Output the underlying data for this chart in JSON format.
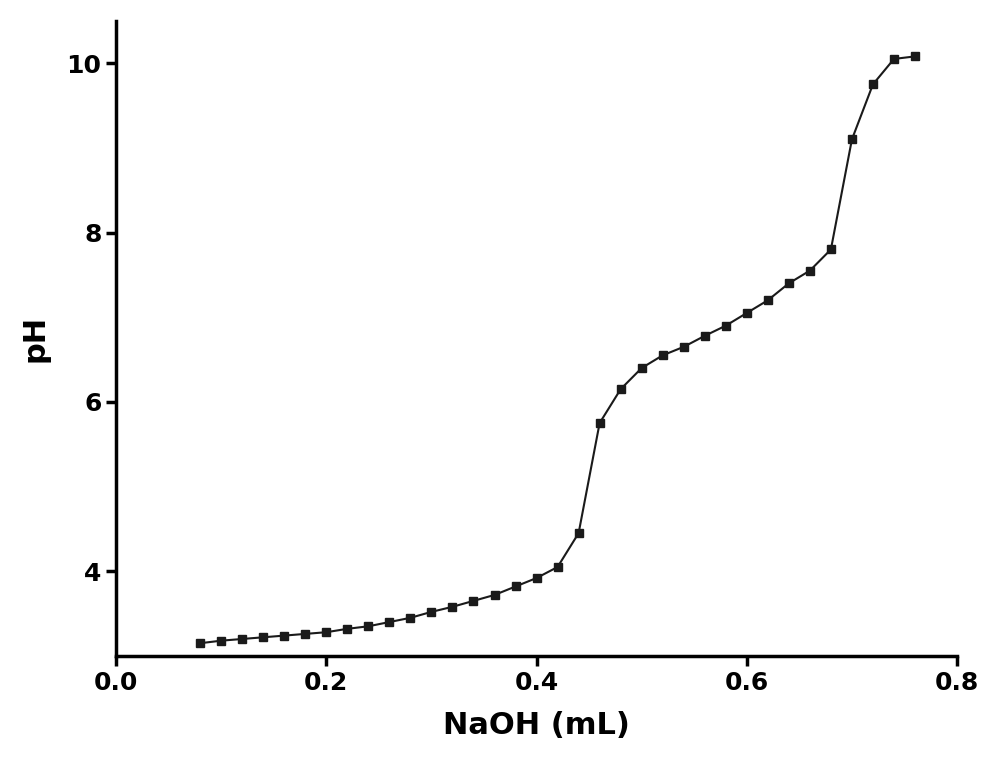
{
  "x": [
    0.08,
    0.1,
    0.12,
    0.14,
    0.16,
    0.18,
    0.2,
    0.22,
    0.24,
    0.26,
    0.28,
    0.3,
    0.32,
    0.34,
    0.36,
    0.38,
    0.4,
    0.42,
    0.44,
    0.46,
    0.48,
    0.5,
    0.52,
    0.54,
    0.56,
    0.58,
    0.6,
    0.62,
    0.64,
    0.66,
    0.68,
    0.7,
    0.72,
    0.74,
    0.76
  ],
  "y": [
    3.15,
    3.18,
    3.2,
    3.22,
    3.24,
    3.26,
    3.28,
    3.32,
    3.35,
    3.4,
    3.45,
    3.52,
    3.58,
    3.65,
    3.72,
    3.82,
    3.92,
    4.05,
    4.45,
    5.75,
    6.15,
    6.4,
    6.55,
    6.65,
    6.78,
    6.9,
    7.05,
    7.2,
    7.4,
    7.55,
    7.8,
    9.1,
    9.75,
    10.05,
    10.08
  ],
  "xlabel": "NaOH (mL)",
  "ylabel": "pH",
  "xlim": [
    0.0,
    0.8
  ],
  "ylim": [
    3.0,
    10.5
  ],
  "xticks": [
    0.0,
    0.2,
    0.4,
    0.6,
    0.8
  ],
  "yticks": [
    4,
    6,
    8,
    10
  ],
  "line_color": "#1a1a1a",
  "marker": "s",
  "markersize": 6,
  "linewidth": 1.5,
  "background_color": "#ffffff",
  "xlabel_fontsize": 22,
  "ylabel_fontsize": 22,
  "tick_fontsize": 18
}
